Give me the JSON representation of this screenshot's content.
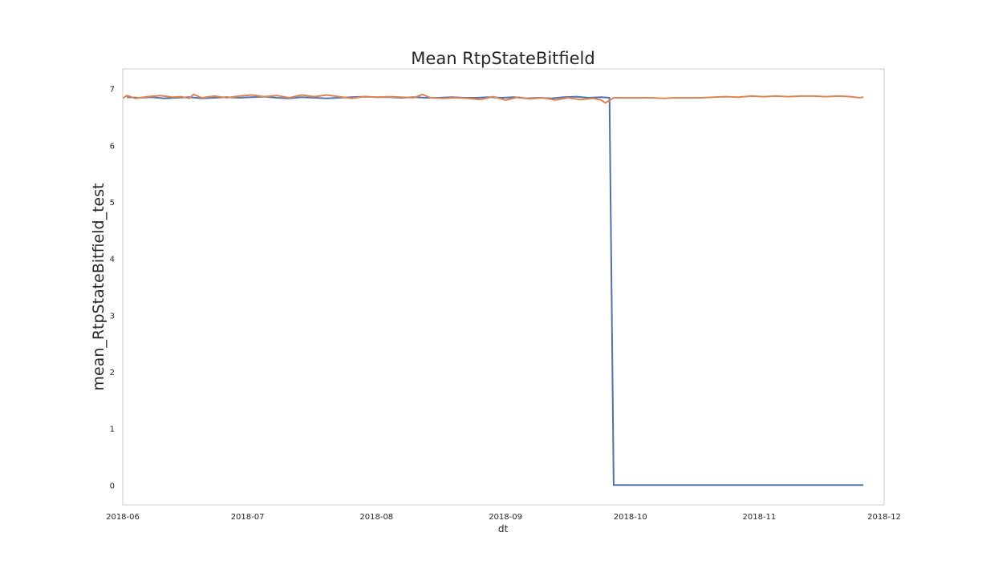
{
  "chart_data": {
    "type": "line",
    "title": "Mean RtpStateBitfield",
    "xlabel": "dt",
    "ylabel": "mean_RtpStateBitfield_test",
    "xlim": [
      "2018-06-01",
      "2018-12-01"
    ],
    "ylim": [
      -0.35,
      7.35
    ],
    "x_ticks": [
      "2018-06",
      "2018-07",
      "2018-08",
      "2018-09",
      "2018-10",
      "2018-11",
      "2018-12"
    ],
    "y_ticks": [
      "0",
      "1",
      "2",
      "3",
      "4",
      "5",
      "6",
      "7"
    ],
    "grid": false,
    "legend": "none",
    "series": [
      {
        "color": "#4c72b0",
        "points": [
          [
            "2018-06-02",
            6.85
          ],
          [
            "2018-06-05",
            6.84
          ],
          [
            "2018-06-08",
            6.85
          ],
          [
            "2018-06-11",
            6.83
          ],
          [
            "2018-06-14",
            6.84
          ],
          [
            "2018-06-17",
            6.85
          ],
          [
            "2018-06-20",
            6.83
          ],
          [
            "2018-06-23",
            6.84
          ],
          [
            "2018-06-26",
            6.85
          ],
          [
            "2018-06-29",
            6.84
          ],
          [
            "2018-07-02",
            6.85
          ],
          [
            "2018-07-05",
            6.86
          ],
          [
            "2018-07-08",
            6.84
          ],
          [
            "2018-07-11",
            6.83
          ],
          [
            "2018-07-14",
            6.85
          ],
          [
            "2018-07-17",
            6.84
          ],
          [
            "2018-07-20",
            6.83
          ],
          [
            "2018-07-23",
            6.84
          ],
          [
            "2018-07-26",
            6.85
          ],
          [
            "2018-07-29",
            6.86
          ],
          [
            "2018-08-01",
            6.85
          ],
          [
            "2018-08-04",
            6.85
          ],
          [
            "2018-08-07",
            6.84
          ],
          [
            "2018-08-10",
            6.85
          ],
          [
            "2018-08-13",
            6.84
          ],
          [
            "2018-08-16",
            6.84
          ],
          [
            "2018-08-19",
            6.85
          ],
          [
            "2018-08-22",
            6.84
          ],
          [
            "2018-08-25",
            6.84
          ],
          [
            "2018-08-28",
            6.85
          ],
          [
            "2018-08-31",
            6.84
          ],
          [
            "2018-09-03",
            6.85
          ],
          [
            "2018-09-06",
            6.83
          ],
          [
            "2018-09-09",
            6.84
          ],
          [
            "2018-09-12",
            6.83
          ],
          [
            "2018-09-15",
            6.85
          ],
          [
            "2018-09-18",
            6.86
          ],
          [
            "2018-09-21",
            6.84
          ],
          [
            "2018-09-24",
            6.85
          ],
          [
            "2018-09-26",
            6.84
          ],
          [
            "2018-09-27",
            0.0
          ],
          [
            "2018-10-05",
            0.0
          ],
          [
            "2018-10-15",
            0.0
          ],
          [
            "2018-10-25",
            0.0
          ],
          [
            "2018-11-05",
            0.0
          ],
          [
            "2018-11-15",
            0.0
          ],
          [
            "2018-11-26",
            0.0
          ]
        ]
      },
      {
        "color": "#dd8452",
        "points": [
          [
            "2018-06-01",
            6.83
          ],
          [
            "2018-06-02",
            6.88
          ],
          [
            "2018-06-04",
            6.83
          ],
          [
            "2018-06-07",
            6.86
          ],
          [
            "2018-06-10",
            6.88
          ],
          [
            "2018-06-13",
            6.85
          ],
          [
            "2018-06-15",
            6.86
          ],
          [
            "2018-06-17",
            6.83
          ],
          [
            "2018-06-18",
            6.9
          ],
          [
            "2018-06-20",
            6.84
          ],
          [
            "2018-06-23",
            6.87
          ],
          [
            "2018-06-26",
            6.84
          ],
          [
            "2018-06-29",
            6.87
          ],
          [
            "2018-07-02",
            6.89
          ],
          [
            "2018-07-05",
            6.86
          ],
          [
            "2018-07-08",
            6.88
          ],
          [
            "2018-07-11",
            6.84
          ],
          [
            "2018-07-14",
            6.89
          ],
          [
            "2018-07-17",
            6.86
          ],
          [
            "2018-07-20",
            6.89
          ],
          [
            "2018-07-23",
            6.86
          ],
          [
            "2018-07-26",
            6.83
          ],
          [
            "2018-07-29",
            6.86
          ],
          [
            "2018-08-01",
            6.85
          ],
          [
            "2018-08-04",
            6.86
          ],
          [
            "2018-08-07",
            6.85
          ],
          [
            "2018-08-10",
            6.84
          ],
          [
            "2018-08-12",
            6.9
          ],
          [
            "2018-08-14",
            6.84
          ],
          [
            "2018-08-17",
            6.83
          ],
          [
            "2018-08-20",
            6.84
          ],
          [
            "2018-08-23",
            6.83
          ],
          [
            "2018-08-26",
            6.81
          ],
          [
            "2018-08-29",
            6.86
          ],
          [
            "2018-09-01",
            6.8
          ],
          [
            "2018-09-04",
            6.85
          ],
          [
            "2018-09-07",
            6.82
          ],
          [
            "2018-09-10",
            6.84
          ],
          [
            "2018-09-13",
            6.8
          ],
          [
            "2018-09-16",
            6.84
          ],
          [
            "2018-09-19",
            6.81
          ],
          [
            "2018-09-22",
            6.83
          ],
          [
            "2018-09-24",
            6.8
          ],
          [
            "2018-09-25",
            6.75
          ],
          [
            "2018-09-27",
            6.84
          ],
          [
            "2018-09-30",
            6.84
          ],
          [
            "2018-10-03",
            6.84
          ],
          [
            "2018-10-06",
            6.84
          ],
          [
            "2018-10-09",
            6.83
          ],
          [
            "2018-10-12",
            6.84
          ],
          [
            "2018-10-15",
            6.84
          ],
          [
            "2018-10-18",
            6.84
          ],
          [
            "2018-10-21",
            6.85
          ],
          [
            "2018-10-24",
            6.86
          ],
          [
            "2018-10-27",
            6.85
          ],
          [
            "2018-10-30",
            6.87
          ],
          [
            "2018-11-02",
            6.86
          ],
          [
            "2018-11-05",
            6.87
          ],
          [
            "2018-11-08",
            6.86
          ],
          [
            "2018-11-11",
            6.87
          ],
          [
            "2018-11-14",
            6.87
          ],
          [
            "2018-11-17",
            6.86
          ],
          [
            "2018-11-20",
            6.87
          ],
          [
            "2018-11-23",
            6.86
          ],
          [
            "2018-11-25",
            6.84
          ],
          [
            "2018-11-26",
            6.85
          ]
        ]
      }
    ]
  }
}
